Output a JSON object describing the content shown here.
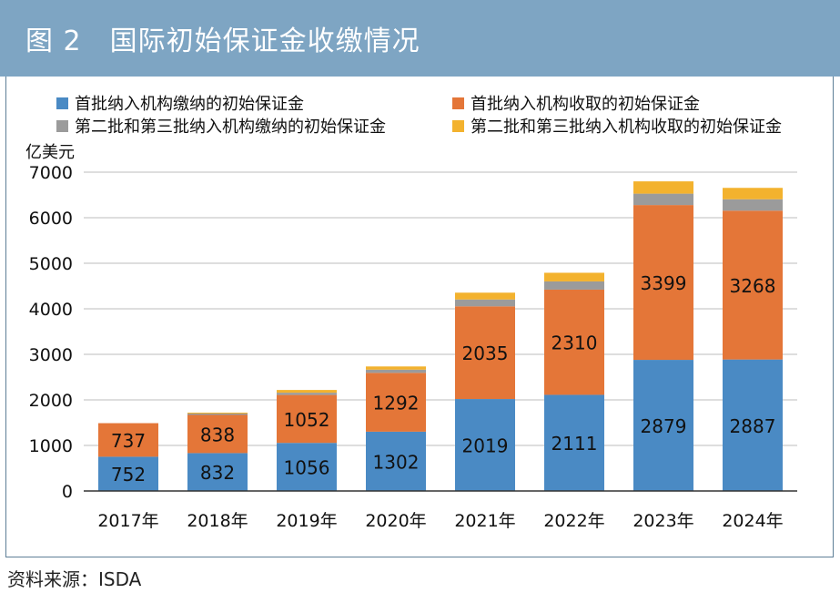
{
  "figure": {
    "title": "图 2　国际初始保证金收缴情况",
    "source": "资料来源：ISDA"
  },
  "colors": {
    "title_bar": "#7ea5c3",
    "series": [
      "#4a8ac4",
      "#e47638",
      "#9b9b9b",
      "#f3b22e"
    ],
    "grid": "#d4d4d4"
  },
  "chart_data": {
    "type": "bar",
    "stacked": true,
    "title": "国际初始保证金收缴情况",
    "ylabel": "亿美元",
    "xlabel": "",
    "ylim": [
      0,
      7000
    ],
    "yticks": [
      0,
      1000,
      2000,
      3000,
      4000,
      5000,
      6000,
      7000
    ],
    "grid": true,
    "legend_position": "top",
    "categories": [
      "2017年",
      "2018年",
      "2019年",
      "2020年",
      "2021年",
      "2022年",
      "2023年",
      "2024年"
    ],
    "series": [
      {
        "name": "首批纳入机构缴纳的初始保证金",
        "values": [
          752,
          832,
          1056,
          1302,
          2019,
          2111,
          2879,
          2887
        ],
        "labeled": true
      },
      {
        "name": "首批纳入机构收取的初始保证金",
        "values": [
          737,
          838,
          1052,
          1292,
          2035,
          2310,
          3399,
          3268
        ],
        "labeled": true
      },
      {
        "name": "第二批和第三批纳入机构缴纳的初始保证金",
        "values": [
          0,
          30,
          50,
          70,
          150,
          180,
          250,
          250
        ],
        "labeled": false
      },
      {
        "name": "第二批和第三批纳入机构收取的初始保证金",
        "values": [
          0,
          20,
          60,
          70,
          150,
          190,
          270,
          250
        ],
        "labeled": false
      }
    ]
  }
}
